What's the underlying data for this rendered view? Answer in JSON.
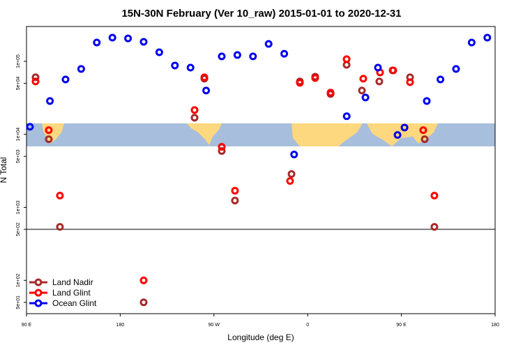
{
  "chart_data": {
    "type": "scatter",
    "title": "15N-30N February (Ver 10_raw)   2015-01-01 to 2020-12-31",
    "xlabel": "Longitude (deg E)",
    "ylabel": "N Total",
    "log_y": true,
    "legend": "lower left",
    "hline": 500,
    "xlim": [
      90,
      540
    ],
    "ylim": [
      35,
      300000
    ],
    "xticks": [
      {
        "value": 90,
        "label": "90 E"
      },
      180,
      {
        "value": 270,
        "label": "90 W"
      },
      {
        "value": 360,
        "label": "0"
      },
      {
        "value": 450,
        "label": "90 E"
      },
      {
        "value": 540,
        "label": "180"
      }
    ],
    "yticks": [
      {
        "value": 50,
        "label": "5e+01"
      },
      {
        "value": 100,
        "label": "1e+02"
      },
      {
        "value": 500,
        "label": "5e+02"
      },
      {
        "value": 1000,
        "label": "1e+03"
      },
      {
        "value": 5000,
        "label": "5e+03"
      },
      {
        "value": 10000,
        "label": "1e+04"
      },
      {
        "value": 50000,
        "label": "5e+04"
      },
      {
        "value": 100000,
        "label": "1e+05"
      }
    ],
    "series": [
      {
        "name": "Land Nadir",
        "color": "#a52a2a",
        "x": [
          98.7,
          111.4,
          122.1,
          202.5,
          251.4,
          260.8,
          277.5,
          290.2,
          344.5,
          352.5,
          367.2,
          382,
          397.4,
          412.1,
          428.8,
          441.6,
          458.3,
          472.4,
          481.7
        ],
        "values": [
          60400,
          8570,
          540,
          50,
          16900,
          57800,
          5910,
          1240,
          2860,
          53000,
          61700,
          35700,
          89600,
          39800,
          53000,
          75200,
          60400,
          8570,
          540
        ]
      },
      {
        "name": "Land Glint",
        "color": "#ff0000",
        "x": [
          98.7,
          111.4,
          122.1,
          202.5,
          251.4,
          260.8,
          277.5,
          290.2,
          343.1,
          352.5,
          367.2,
          382,
          397.4,
          413.4,
          429.5,
          442.2,
          458.3,
          471,
          481.7
        ],
        "values": [
          53000,
          11400,
          1450,
          100,
          21500,
          60400,
          6740,
          1690,
          2300,
          50700,
          59000,
          37300,
          107000,
          57800,
          70400,
          75200,
          51800,
          11400,
          1450
        ]
      },
      {
        "name": "Ocean Glint",
        "color": "#0000ee",
        "x": [
          93.3,
          112.5,
          127.5,
          142.5,
          157.5,
          172.5,
          187.5,
          202.5,
          217.5,
          232.5,
          247.5,
          262.5,
          277.5,
          292.5,
          307.5,
          322.5,
          337.5,
          347,
          397.5,
          415.5,
          427.5,
          446.3,
          453,
          474.4,
          487.5,
          502.5,
          517.5,
          532.5
        ],
        "values": [
          12700,
          28600,
          56500,
          78600,
          181000,
          211000,
          206000,
          185000,
          133000,
          87700,
          82000,
          39800,
          117000,
          122000,
          117000,
          173000,
          127000,
          5300,
          17700,
          32000,
          82000,
          9800,
          12400,
          28600,
          56500,
          78600,
          181000,
          211000
        ]
      }
    ]
  }
}
